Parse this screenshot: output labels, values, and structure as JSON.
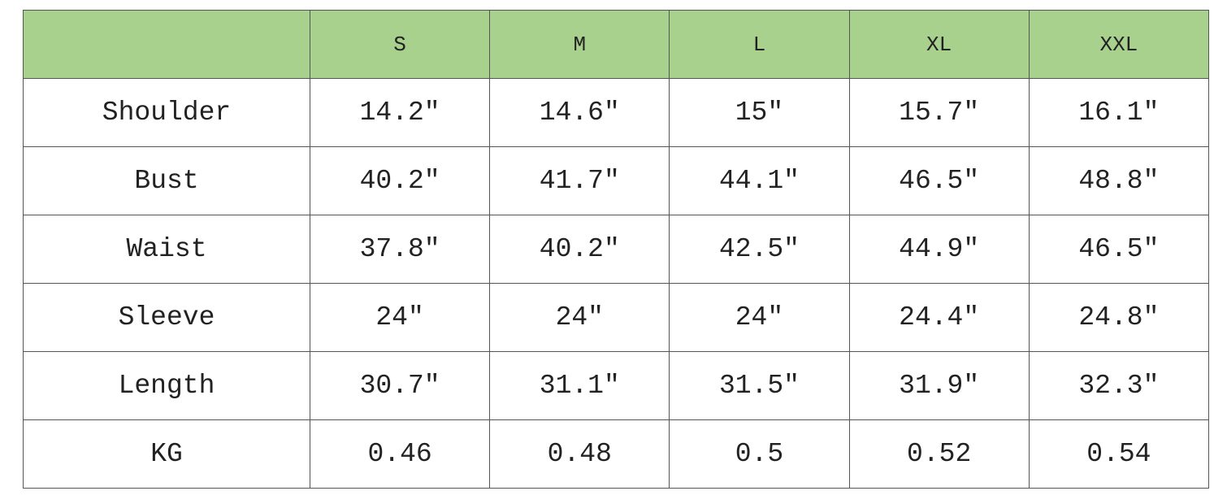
{
  "table": {
    "columns": [
      "S",
      "M",
      "L",
      "XL",
      "XXL"
    ],
    "rows": [
      [
        "Shoulder",
        "14.2″",
        "14.6″",
        "15″",
        "15.7″",
        "16.1″"
      ],
      [
        "Bust",
        "40.2″",
        "41.7″",
        "44.1″",
        "46.5″",
        "48.8″"
      ],
      [
        "Waist",
        "37.8″",
        "40.2″",
        "42.5″",
        "44.9″",
        "46.5″"
      ],
      [
        "Sleeve",
        "24″",
        "24″",
        "24″",
        "24.4″",
        "24.8″"
      ],
      [
        "Length",
        "30.7″",
        "31.1″",
        "31.5″",
        "31.9″",
        "32.3″"
      ],
      [
        "KG",
        "0.46",
        "0.48",
        "0.5",
        "0.52",
        "0.54"
      ]
    ]
  }
}
